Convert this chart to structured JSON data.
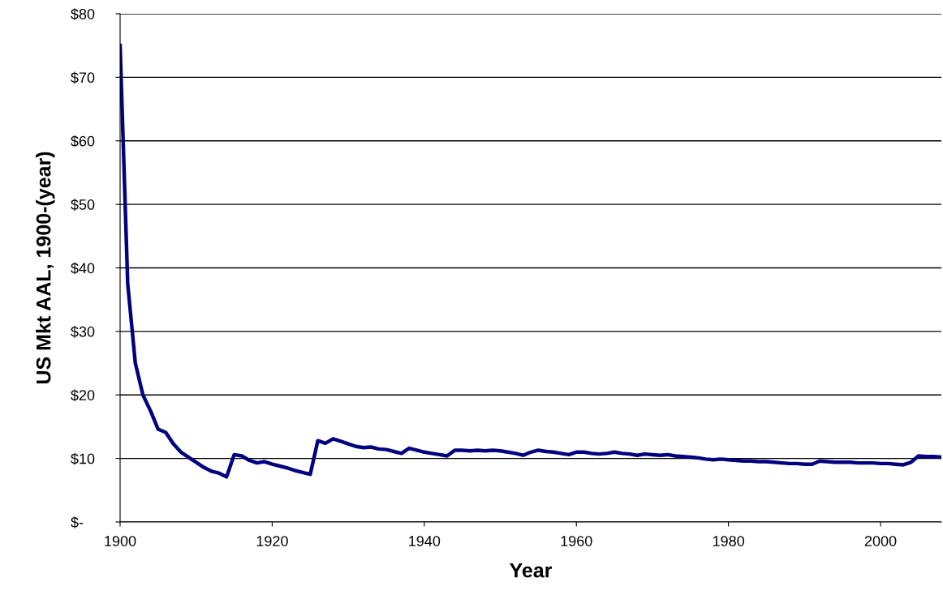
{
  "chart_data": {
    "type": "line",
    "xlabel": "Year",
    "ylabel": "US Mkt AAL, 1900-(year)",
    "x": [
      1900,
      1901,
      1902,
      1903,
      1904,
      1905,
      1906,
      1907,
      1908,
      1909,
      1910,
      1911,
      1912,
      1913,
      1914,
      1915,
      1916,
      1917,
      1918,
      1919,
      1920,
      1921,
      1922,
      1923,
      1924,
      1925,
      1926,
      1927,
      1928,
      1929,
      1930,
      1931,
      1932,
      1933,
      1934,
      1935,
      1936,
      1937,
      1938,
      1939,
      1940,
      1941,
      1942,
      1943,
      1944,
      1945,
      1946,
      1947,
      1948,
      1949,
      1950,
      1951,
      1952,
      1953,
      1954,
      1955,
      1956,
      1957,
      1958,
      1959,
      1960,
      1961,
      1962,
      1963,
      1964,
      1965,
      1966,
      1967,
      1968,
      1969,
      1970,
      1971,
      1972,
      1973,
      1974,
      1975,
      1976,
      1977,
      1978,
      1979,
      1980,
      1981,
      1982,
      1983,
      1984,
      1985,
      1986,
      1987,
      1988,
      1989,
      1990,
      1991,
      1992,
      1993,
      1994,
      1995,
      1996,
      1997,
      1998,
      1999,
      2000,
      2001,
      2002,
      2003,
      2004,
      2005,
      2006,
      2007,
      2008
    ],
    "series": [
      {
        "color": "#000080",
        "values": [
          75,
          37.5,
          25,
          20,
          17.5,
          14.6,
          14.1,
          12.3,
          11,
          10.2,
          9.4,
          8.6,
          8.0,
          7.7,
          7.1,
          10.6,
          10.4,
          9.7,
          9.3,
          9.5,
          9.1,
          8.8,
          8.5,
          8.1,
          7.8,
          7.5,
          12.8,
          12.4,
          13.1,
          12.7,
          12.3,
          11.9,
          11.7,
          11.8,
          11.5,
          11.4,
          11.1,
          10.8,
          11.6,
          11.3,
          11.0,
          10.8,
          10.6,
          10.4,
          11.3,
          11.3,
          11.2,
          11.3,
          11.2,
          11.3,
          11.2,
          11.0,
          10.8,
          10.5,
          11.0,
          11.3,
          11.1,
          11.0,
          10.8,
          10.6,
          11.0,
          11.0,
          10.8,
          10.7,
          10.8,
          11.0,
          10.8,
          10.7,
          10.5,
          10.7,
          10.6,
          10.5,
          10.6,
          10.4,
          10.3,
          10.2,
          10.1,
          9.9,
          9.8,
          9.9,
          9.8,
          9.7,
          9.6,
          9.6,
          9.5,
          9.5,
          9.4,
          9.3,
          9.2,
          9.2,
          9.1,
          9.1,
          9.6,
          9.5,
          9.4,
          9.4,
          9.4,
          9.3,
          9.3,
          9.3,
          9.2,
          9.2,
          9.1,
          9.0,
          9.4,
          10.4,
          10.3,
          10.3,
          10.2
        ]
      }
    ],
    "xlim": [
      1900,
      2008
    ],
    "xticks": [
      1900,
      1920,
      1940,
      1960,
      1980,
      2000
    ],
    "ylim": [
      0,
      80
    ],
    "yticks": [
      {
        "value": 0,
        "label": "$-"
      },
      {
        "value": 10,
        "label": "$10"
      },
      {
        "value": 20,
        "label": "$20"
      },
      {
        "value": 30,
        "label": "$30"
      },
      {
        "value": 40,
        "label": "$40"
      },
      {
        "value": 50,
        "label": "$50"
      },
      {
        "value": 60,
        "label": "$60"
      },
      {
        "value": 70,
        "label": "$70"
      },
      {
        "value": 80,
        "label": "$80"
      }
    ],
    "grid": "y",
    "marker": "none",
    "line_style": "solid",
    "legend": false
  }
}
